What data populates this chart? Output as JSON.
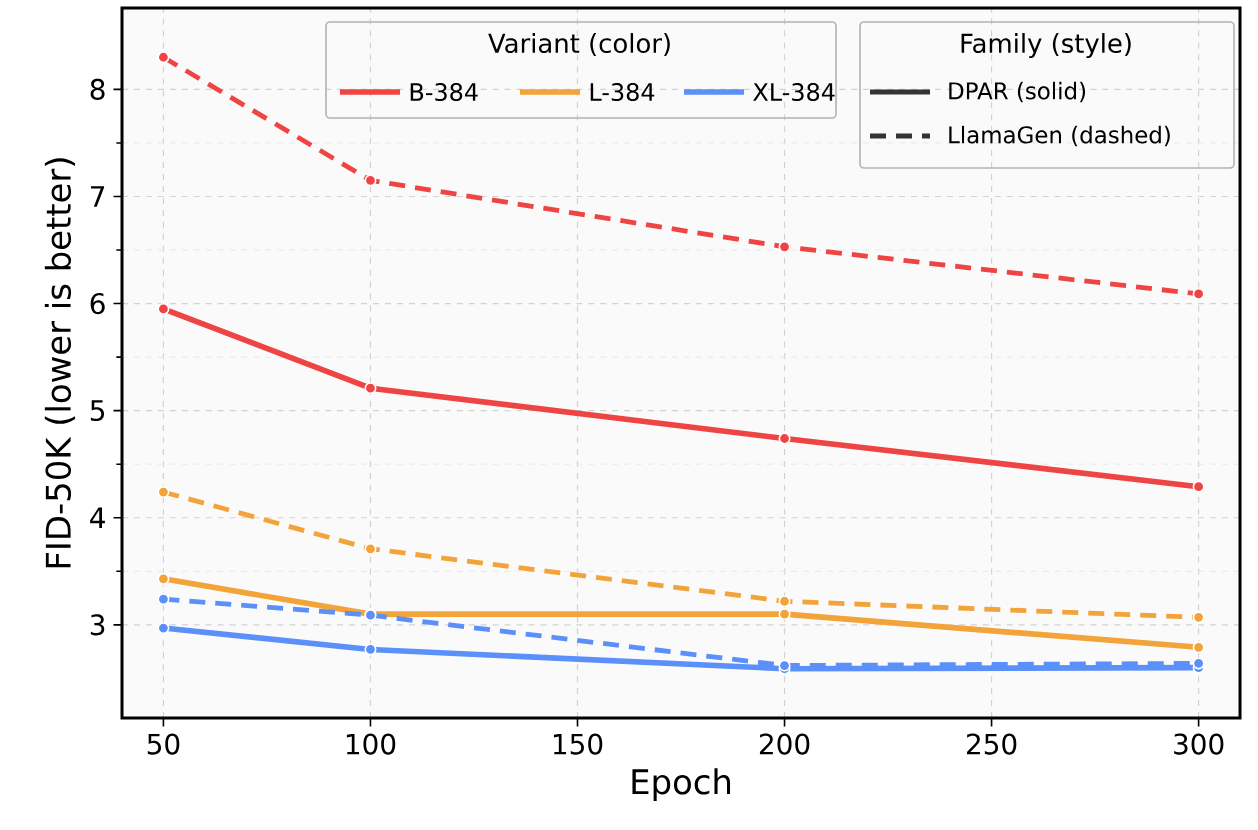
{
  "chart_data": {
    "type": "line",
    "xlabel": "Epoch",
    "ylabel": "FID-50K (lower is better)",
    "legend_title": "Variant (color)",
    "x": [
      50,
      100,
      200,
      300
    ],
    "series": [
      {
        "name": "B-384",
        "color": "#ef4444",
        "values": [
          5.95,
          5.21,
          4.74,
          4.29
        ]
      },
      {
        "name": "L-384",
        "color": "#f2a43a",
        "values": [
          3.43,
          3.1,
          3.1,
          2.79
        ]
      },
      {
        "name": "XL-384",
        "color": "#5b8ff9",
        "values": [
          2.97,
          2.77,
          2.59,
          2.6
        ]
      },
      {
        "color": "#ef4444",
        "line_style": "dashed",
        "values": [
          8.3,
          7.15,
          6.53,
          6.09
        ]
      },
      {
        "color": "#f2a43a",
        "line_style": "dashed",
        "values": [
          4.24,
          3.71,
          3.22,
          3.07
        ]
      },
      {
        "color": "#5b8ff9",
        "line_style": "dashed",
        "values": [
          3.24,
          3.09,
          2.62,
          2.64
        ]
      }
    ],
    "annotations": [
      "Family (style)",
      "DPAR (solid)",
      "LlamaGen (dashed)"
    ],
    "xlim": [
      40,
      310
    ],
    "ylim": [
      2.13,
      8.76
    ],
    "xticks": [
      50,
      100,
      150,
      200,
      250,
      300
    ],
    "yticks": [
      3,
      4,
      5,
      6,
      7,
      8
    ],
    "grid": true,
    "legend": "top",
    "marker": "circle",
    "line_style": "solid"
  }
}
